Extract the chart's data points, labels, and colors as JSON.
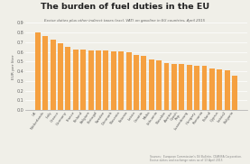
{
  "title": "The burden of fuel duties in the EU",
  "subtitle": "Excise duties plus other indirect taxes (excl. VAT) on gasoline in EU countries, April 2015",
  "ylabel": "EUR per liter",
  "source": "Sources:  European Commission's Oil Bulletin, OEANSA Corporation.\nExcise duties and exchange rates as of 13 April 2015",
  "ylim": [
    0,
    0.9
  ],
  "yticks": [
    0,
    0.1,
    0.2,
    0.3,
    0.4,
    0.5,
    0.6,
    0.7,
    0.8,
    0.9
  ],
  "bar_color": "#F5A040",
  "background_color": "#F0EFE8",
  "grid_color": "#FFFFFF",
  "labels": [
    "UK",
    "Netherlands",
    "Italy",
    "Greece",
    "Germany",
    "France",
    "Finland",
    "Belgium",
    "Portugal",
    "Sweden",
    "Denmark",
    "Slovenia",
    "Estonia",
    "Latvia",
    "Croatia",
    "Malta",
    "Lithuania",
    "Slovakia",
    "Austria",
    "Czech\nRep.",
    "Luxembourg",
    "Hungary",
    "Romania",
    "Poland",
    "Cyprus",
    "Latvia2",
    "Bulgaria"
  ],
  "values": [
    0.8,
    0.765,
    0.725,
    0.69,
    0.655,
    0.625,
    0.62,
    0.618,
    0.617,
    0.613,
    0.607,
    0.602,
    0.598,
    0.572,
    0.558,
    0.52,
    0.51,
    0.488,
    0.478,
    0.472,
    0.465,
    0.46,
    0.455,
    0.432,
    0.422,
    0.412,
    0.358
  ]
}
